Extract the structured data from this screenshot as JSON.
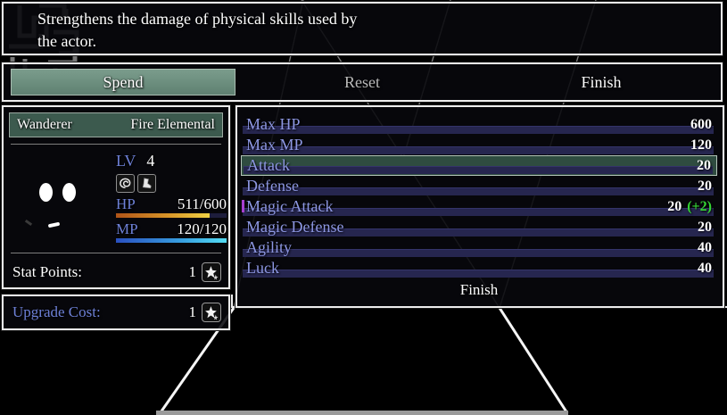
{
  "help": {
    "line1": "Strengthens the damage of physical skills used by",
    "line2": "the actor."
  },
  "toolbar": {
    "spend_label": "Spend",
    "reset_label": "Reset",
    "finish_label": "Finish"
  },
  "character": {
    "name": "Wanderer",
    "class_name": "Fire Elemental",
    "lv_label": "LV",
    "lv_value": "4",
    "status_icons": [
      "swirl-state-icon",
      "boot-state-icon"
    ],
    "hp_label": "HP",
    "hp_value": "511/600",
    "hp_percent": 85,
    "mp_label": "MP",
    "mp_value": "120/120",
    "mp_percent": 100,
    "stat_points_label": "Stat Points:",
    "stat_points_value": "1"
  },
  "upgrade": {
    "label": "Upgrade Cost:",
    "value": "1"
  },
  "stats": {
    "rows": [
      {
        "label": "Max HP",
        "value": "600",
        "bonus": ""
      },
      {
        "label": "Max MP",
        "value": "120",
        "bonus": ""
      },
      {
        "label": "Attack",
        "value": "20",
        "bonus": ""
      },
      {
        "label": "Defense",
        "value": "20",
        "bonus": ""
      },
      {
        "label": "Magic Attack",
        "value": "20",
        "bonus": "(+2)"
      },
      {
        "label": "Magic Defense",
        "value": "20",
        "bonus": ""
      },
      {
        "label": "Agility",
        "value": "40",
        "bonus": ""
      },
      {
        "label": "Luck",
        "value": "40",
        "bonus": ""
      }
    ],
    "selected_index": 2,
    "finish_label": "Finish"
  },
  "colors": {
    "accent_teal": "#6b8d7d",
    "selection_teal": "#2f4c40",
    "label_blue": "#6d80d6",
    "stat_label_blue": "#8d97e2",
    "bonus_green": "#35d435",
    "gauge_navy": "#26264f",
    "hp_gradient": [
      "#b05418",
      "#f0d244"
    ],
    "mp_gradient": [
      "#2a50c0",
      "#54dcf4"
    ]
  }
}
